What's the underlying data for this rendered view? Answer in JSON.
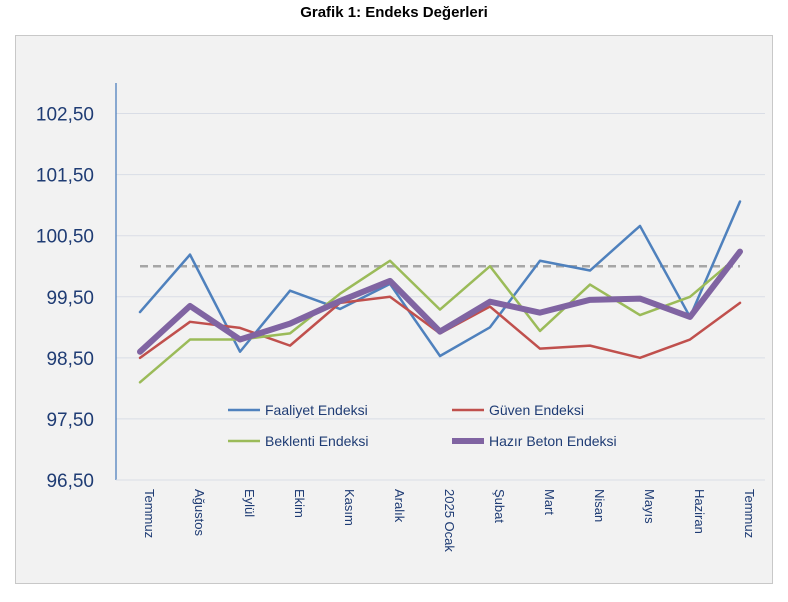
{
  "chart_data": {
    "type": "line",
    "title": "Grafik 1: Endeks Değerleri",
    "xlabel": "",
    "ylabel": "",
    "ylim": [
      96.5,
      103.0
    ],
    "yticks": [
      "96,50",
      "97,50",
      "98,50",
      "99,50",
      "100,50",
      "101,50",
      "102,50"
    ],
    "ytick_values": [
      96.5,
      97.5,
      98.5,
      99.5,
      100.5,
      101.5,
      102.5
    ],
    "grid": true,
    "legend_position": "inside-bottom",
    "categories": [
      "Temmuz",
      "Ağustos",
      "Eylül",
      "Ekim",
      "Kasım",
      "Aralık",
      "2025 Ocak",
      "Şubat",
      "Mart",
      "Nisan",
      "Mayıs",
      "Haziran",
      "Temmuz"
    ],
    "reference_line": {
      "value": 100,
      "color": "#a6a6a6"
    },
    "series": [
      {
        "name": "Faaliyet Endeksi",
        "color": "#4f81bd",
        "values": [
          99.25,
          100.19,
          98.6,
          99.6,
          99.3,
          99.71,
          98.53,
          99.0,
          100.09,
          99.93,
          100.66,
          99.17,
          101.06
        ]
      },
      {
        "name": "Güven Endeksi",
        "color": "#c0504d",
        "values": [
          98.5,
          99.09,
          98.99,
          98.7,
          99.4,
          99.5,
          98.9,
          99.34,
          98.65,
          98.7,
          98.5,
          98.8,
          99.4
        ]
      },
      {
        "name": "Beklenti Endeksi",
        "color": "#9bbb59",
        "values": [
          98.1,
          98.8,
          98.8,
          98.9,
          99.55,
          100.09,
          99.29,
          100.0,
          98.94,
          99.7,
          99.2,
          99.5,
          100.19
        ]
      },
      {
        "name": "Hazır Beton Endeksi",
        "color": "#8064a2",
        "values": [
          98.6,
          99.35,
          98.8,
          99.06,
          99.43,
          99.76,
          98.93,
          99.42,
          99.24,
          99.45,
          99.47,
          99.17,
          100.24
        ]
      }
    ]
  }
}
